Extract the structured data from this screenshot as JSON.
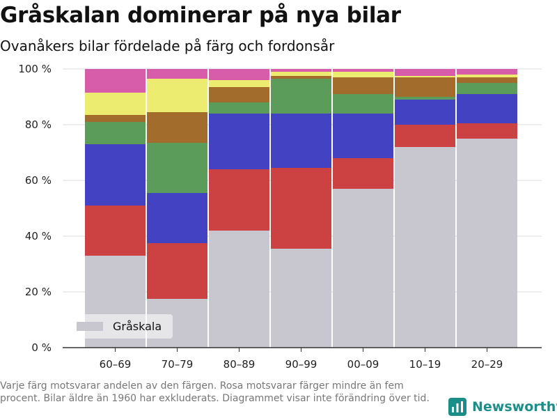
{
  "title": "Gråskalan dominerar på nya bilar",
  "subtitle": "Ovanåkers bilar fördelade på färg och fordonsår",
  "footnote": "Varje färg motsvarar andelen av den färgen. Rosa motsvarar färger mindre än fem procent. Bilar äldre än 1960 har exkluderats. Diagrammet visar inte förändring över tid.",
  "brand": {
    "name": "Newsworthy",
    "icon": "bar-chart-logo-icon"
  },
  "colors": {
    "grayscale": "#c8c7cf",
    "red": "#cc4141",
    "blue": "#4242c3",
    "green": "#5b9c5b",
    "brown": "#a26c2d",
    "yellow": "#ecec70",
    "pink": "#d75caa",
    "axis": "#333333",
    "grid": "#dddddd",
    "brand": "#1a8f8a"
  },
  "chart_data": {
    "type": "bar",
    "stacked": true,
    "categories": [
      "60–69",
      "70–79",
      "80–89",
      "90–99",
      "00–09",
      "10–19",
      "20–29"
    ],
    "series": [
      {
        "name": "Gråskala",
        "color_key": "grayscale",
        "values": [
          33,
          17.5,
          42,
          35.5,
          57,
          72,
          75
        ]
      },
      {
        "color_key": "red",
        "values": [
          18,
          20,
          22,
          29,
          11,
          8,
          5.5
        ]
      },
      {
        "color_key": "blue",
        "values": [
          22,
          18,
          20,
          19.5,
          16,
          9,
          10.5
        ]
      },
      {
        "color_key": "green",
        "values": [
          8,
          18,
          4,
          12.5,
          7,
          1,
          4
        ]
      },
      {
        "color_key": "brown",
        "values": [
          2.5,
          11,
          5.5,
          1,
          6,
          7,
          2
        ]
      },
      {
        "color_key": "yellow",
        "values": [
          8,
          12,
          2.5,
          1.5,
          2,
          0.5,
          1
        ]
      },
      {
        "color_key": "pink",
        "values": [
          8.5,
          3.5,
          4,
          1,
          1,
          2.5,
          2
        ]
      }
    ],
    "y_tick_labels": [
      "0 %",
      "20 %",
      "40 %",
      "60 %",
      "80 %",
      "100 %"
    ],
    "y_ticks": [
      0,
      20,
      40,
      60,
      80,
      100
    ],
    "ylim": [
      0,
      100
    ],
    "xlabel": "",
    "ylabel": "",
    "grid": true,
    "legend": {
      "placement": "bottom-left",
      "entries": [
        "Gråskala"
      ]
    }
  }
}
